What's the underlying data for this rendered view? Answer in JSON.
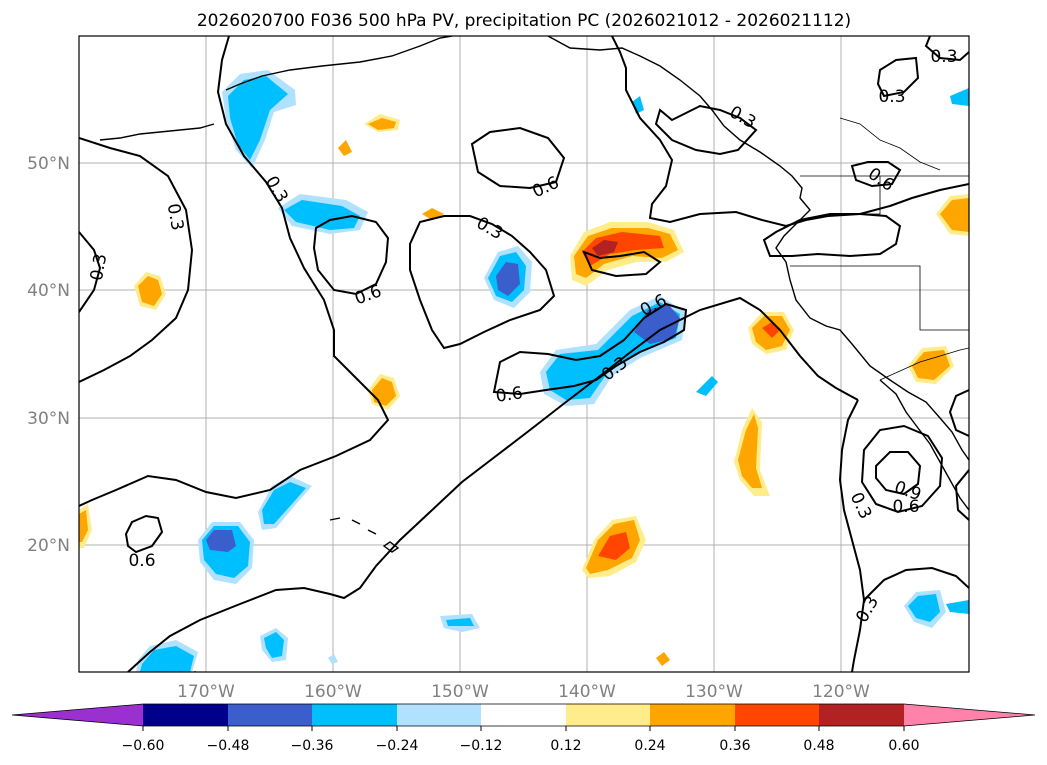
{
  "title": "2026020700 F036 500 hPa PV, precipitation PC (2026021012 - 2026021112)",
  "map": {
    "lat_labels": [
      "50°N",
      "40°N",
      "30°N",
      "20°N"
    ],
    "lon_labels": [
      "170°W",
      "160°W",
      "150°W",
      "140°W",
      "130°W",
      "120°W"
    ],
    "contour_labels": [
      "0.3",
      "0.3",
      "0.3",
      "0.3",
      "0.3",
      "0.3",
      "0.3",
      "0.3",
      "0.6",
      "0.6",
      "0.6",
      "0.6",
      "0.6",
      "0.6",
      "0.6",
      "0.9",
      "0.3",
      "0.3"
    ],
    "contour_levels": [
      0.3,
      0.6,
      0.9
    ]
  },
  "colorbar": {
    "ticks": [
      "−0.60",
      "−0.48",
      "−0.36",
      "−0.24",
      "−0.12",
      "0.12",
      "0.24",
      "0.36",
      "0.48",
      "0.60"
    ],
    "colors": [
      "#9b30d0",
      "#00008b",
      "#3a5fcd",
      "#00bfff",
      "#b0e2ff",
      "#ffffff",
      "#ffec8b",
      "#ffa500",
      "#ff4500",
      "#b22222",
      "#ff82ab"
    ]
  },
  "colors": {
    "blue_light": "#b0e2ff",
    "blue": "#00bfff",
    "blue_dark": "#3a5fcd",
    "yellow": "#ffec8b",
    "orange": "#ffa500",
    "red": "#ff4500",
    "darkred": "#b22222"
  }
}
